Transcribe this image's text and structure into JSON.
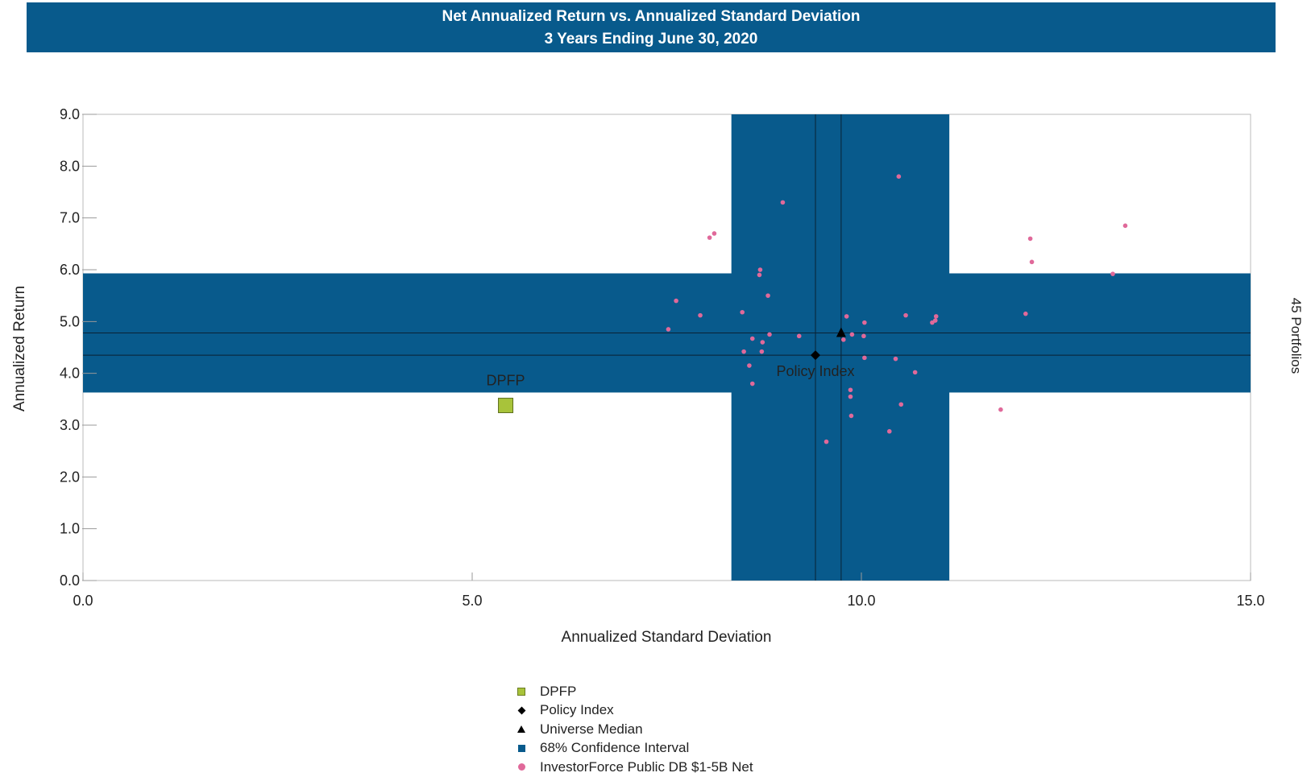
{
  "chart_data": {
    "type": "scatter",
    "title": "Net Annualized Return vs. Annualized Standard Deviation",
    "subtitle": "3 Years Ending June 30, 2020",
    "xlabel": "Annualized Standard Deviation",
    "ylabel": "Annualized Return",
    "right_label": "45 Portfolios",
    "xlim": [
      0,
      15
    ],
    "ylim": [
      0,
      9
    ],
    "x_ticks": [
      "0.0",
      "5.0",
      "10.0",
      "15.0"
    ],
    "y_ticks": [
      "0.0",
      "1.0",
      "2.0",
      "3.0",
      "4.0",
      "5.0",
      "6.0",
      "7.0",
      "8.0",
      "9.0"
    ],
    "grid": false,
    "confidence_interval": {
      "label": "68% Confidence Interval",
      "x_range": [
        8.33,
        11.13
      ],
      "y_range": [
        3.63,
        5.93
      ],
      "color": "#085A8C"
    },
    "reference_lines": {
      "x": [
        9.41,
        9.74
      ],
      "y": [
        4.35,
        4.78
      ]
    },
    "series": [
      {
        "name": "DPFP",
        "marker": "square",
        "color": "#A8C33A",
        "points": [
          [
            5.43,
            3.38
          ]
        ],
        "label": "DPFP"
      },
      {
        "name": "Policy Index",
        "marker": "diamond",
        "color": "#000000",
        "points": [
          [
            9.41,
            4.35
          ]
        ],
        "label": "Policy Index"
      },
      {
        "name": "Universe Median",
        "marker": "triangle",
        "color": "#000000",
        "points": [
          [
            9.74,
            4.78
          ]
        ]
      },
      {
        "name": "InvestorForce Public DB $1-5B Net",
        "marker": "dot",
        "color": "#E0699A",
        "points": [
          [
            10.48,
            7.8
          ],
          [
            8.99,
            7.3
          ],
          [
            13.39,
            6.85
          ],
          [
            8.11,
            6.7
          ],
          [
            8.05,
            6.62
          ],
          [
            12.17,
            6.6
          ],
          [
            12.19,
            6.15
          ],
          [
            8.7,
            6.0
          ],
          [
            8.69,
            5.9
          ],
          [
            13.23,
            5.92
          ],
          [
            7.62,
            5.4
          ],
          [
            8.8,
            5.5
          ],
          [
            8.47,
            5.18
          ],
          [
            12.11,
            5.15
          ],
          [
            7.93,
            5.12
          ],
          [
            10.57,
            5.12
          ],
          [
            9.81,
            5.1
          ],
          [
            10.96,
            5.1
          ],
          [
            10.95,
            5.02
          ],
          [
            10.91,
            4.98
          ],
          [
            10.04,
            4.98
          ],
          [
            7.52,
            4.85
          ],
          [
            9.88,
            4.75
          ],
          [
            10.03,
            4.72
          ],
          [
            8.82,
            4.75
          ],
          [
            9.2,
            4.72
          ],
          [
            8.6,
            4.67
          ],
          [
            8.73,
            4.6
          ],
          [
            9.77,
            4.65
          ],
          [
            8.49,
            4.42
          ],
          [
            8.72,
            4.42
          ],
          [
            10.04,
            4.3
          ],
          [
            10.44,
            4.28
          ],
          [
            8.56,
            4.15
          ],
          [
            10.69,
            4.02
          ],
          [
            8.6,
            3.8
          ],
          [
            9.86,
            3.68
          ],
          [
            9.86,
            3.55
          ],
          [
            10.51,
            3.4
          ],
          [
            11.79,
            3.3
          ],
          [
            9.87,
            3.18
          ],
          [
            10.36,
            2.88
          ],
          [
            9.55,
            2.68
          ]
        ]
      }
    ],
    "legend": [
      {
        "label": "DPFP",
        "marker": "square"
      },
      {
        "label": "Policy Index",
        "marker": "diamond"
      },
      {
        "label": "Universe Median",
        "marker": "triangle"
      },
      {
        "label": "68% Confidence Interval",
        "marker": "ci"
      },
      {
        "label": "InvestorForce Public DB $1-5B Net",
        "marker": "dot"
      }
    ],
    "legend_placement": "bottom-center"
  }
}
